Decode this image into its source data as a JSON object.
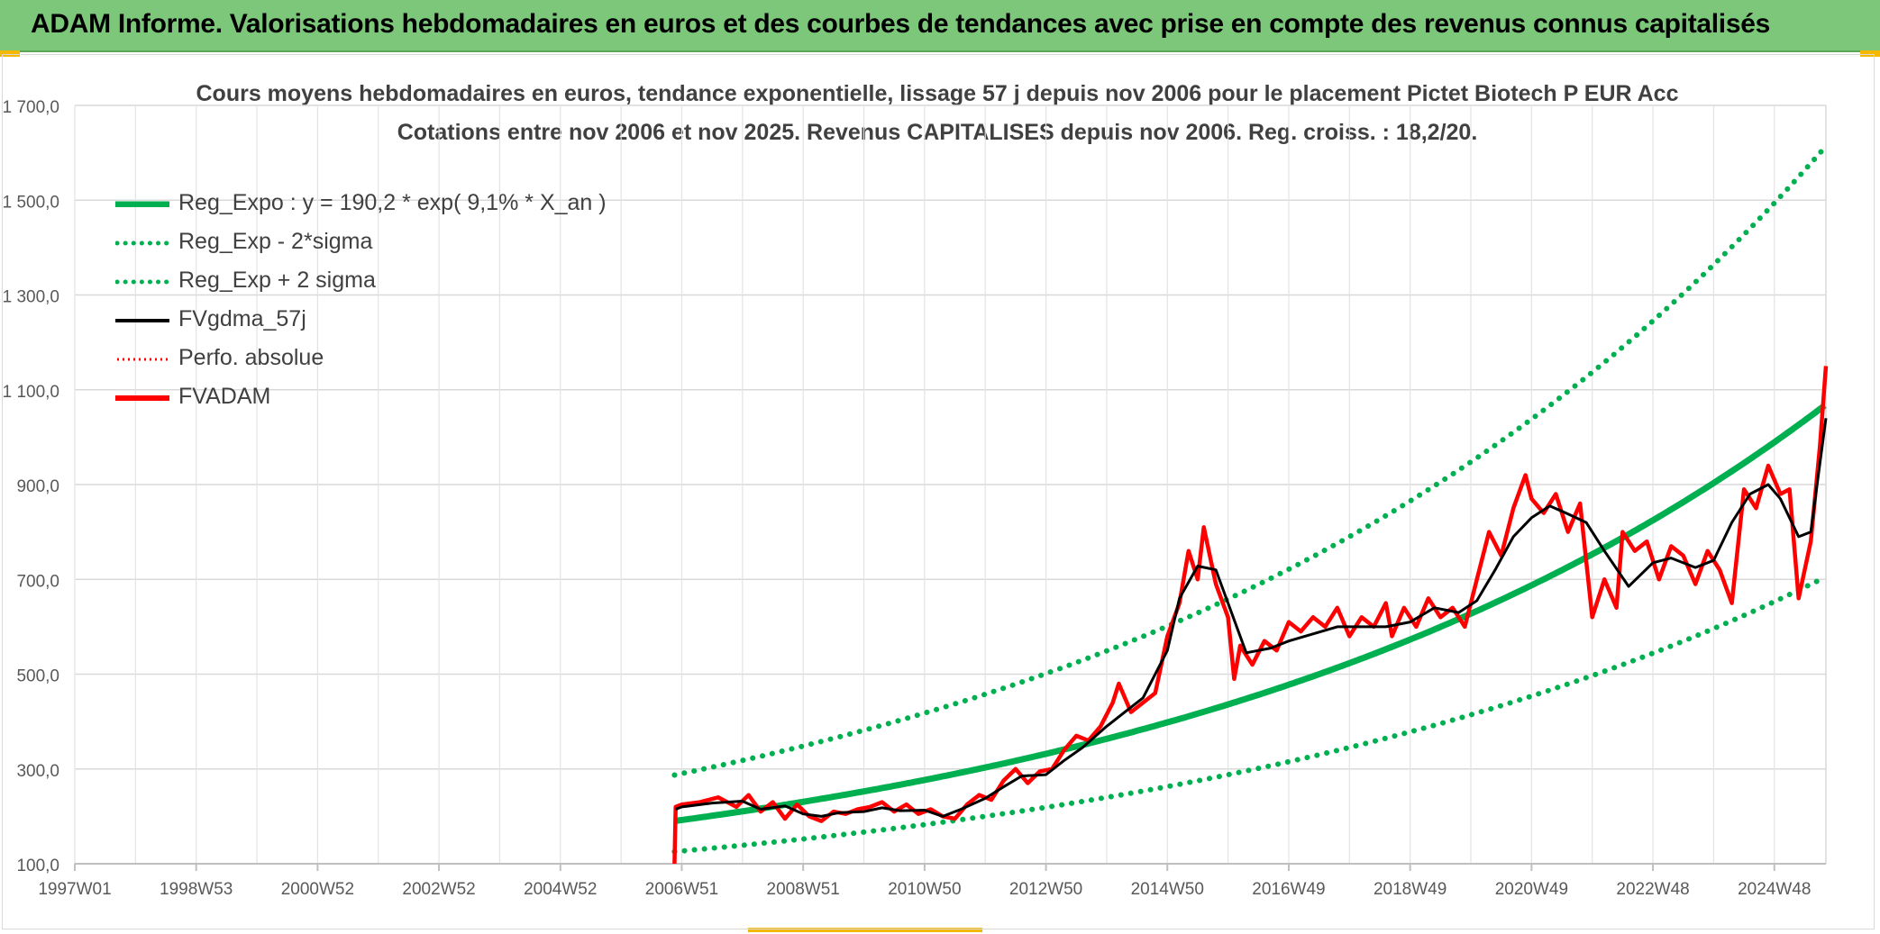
{
  "banner": {
    "title": "ADAM Informe. Valorisations hebdomadaires en euros et des courbes de tendances avec prise en compte des revenus connus capitalisés"
  },
  "chart_data": {
    "type": "line",
    "title": "Cours moyens hebdomadaires en euros, tendance exponentielle, lissage 57 j depuis nov 2006 pour le placement Pictet Biotech P EUR Acc",
    "subtitle": "Cotations entre nov 2006 et nov 2025. Revenus CAPITALISES depuis nov 2006. Reg. croiss. : 18,2/20.",
    "xlabel": "",
    "ylabel": "",
    "ylim": [
      100,
      1700
    ],
    "xlim": [
      1997.0,
      2025.85
    ],
    "y_ticks": [
      "1 700,0",
      "1 500,0",
      "1 300,0",
      "1 100,0",
      "900,0",
      "700,0",
      "500,0",
      "300,0",
      "100,0"
    ],
    "y_tick_values": [
      1700,
      1500,
      1300,
      1100,
      900,
      700,
      500,
      300,
      100
    ],
    "x_tick_labels": [
      "1997W01",
      "1998W53",
      "2000W52",
      "2002W52",
      "2004W52",
      "2006W51",
      "2008W51",
      "2010W50",
      "2012W50",
      "2014W50",
      "2016W49",
      "2018W49",
      "2020W49",
      "2022W48",
      "2024W48"
    ],
    "x_tick_values": [
      1997.0,
      1999.0,
      2001.0,
      2003.0,
      2005.0,
      2007.0,
      2009.0,
      2011.0,
      2013.0,
      2015.0,
      2017.0,
      2019.0,
      2021.0,
      2023.0,
      2025.0
    ],
    "grid": true,
    "legend_position": "top-left",
    "regression": {
      "start_year": 2006.88,
      "start_value": 190.2,
      "growth_rate": 0.091,
      "sigma_band_lower_factor": 0.66,
      "sigma_band_upper_factor": 1.51
    },
    "series": [
      {
        "name": "Reg_Expo : y = 190,2 * exp( 9,1% *  X_an )",
        "color": "#00b050",
        "style": "solid-thick"
      },
      {
        "name": "Reg_Exp - 2*sigma",
        "color": "#00b050",
        "style": "dotted"
      },
      {
        "name": "Reg_Exp + 2 sigma",
        "color": "#00b050",
        "style": "dotted"
      },
      {
        "name": "FVgdma_57j",
        "color": "#000000",
        "style": "solid",
        "x": [
          2006.9,
          2007.0,
          2007.5,
          2008.0,
          2008.3,
          2008.7,
          2009.0,
          2009.3,
          2009.6,
          2010.0,
          2010.3,
          2010.6,
          2011.0,
          2011.3,
          2011.6,
          2012.0,
          2012.3,
          2012.6,
          2013.0,
          2013.3,
          2013.6,
          2014.0,
          2014.3,
          2014.6,
          2015.0,
          2015.2,
          2015.5,
          2015.8,
          2016.0,
          2016.3,
          2016.7,
          2017.0,
          2017.4,
          2017.8,
          2018.2,
          2018.6,
          2019.0,
          2019.4,
          2019.8,
          2020.1,
          2020.4,
          2020.7,
          2021.0,
          2021.3,
          2021.6,
          2021.9,
          2022.2,
          2022.6,
          2023.0,
          2023.3,
          2023.7,
          2024.0,
          2024.3,
          2024.6,
          2024.9,
          2025.1,
          2025.4,
          2025.6,
          2025.85
        ],
        "y": [
          215,
          220,
          228,
          232,
          215,
          222,
          205,
          200,
          208,
          210,
          218,
          212,
          213,
          200,
          215,
          238,
          262,
          285,
          288,
          318,
          345,
          390,
          420,
          450,
          550,
          660,
          728,
          720,
          650,
          545,
          555,
          570,
          585,
          600,
          600,
          600,
          610,
          640,
          630,
          655,
          720,
          790,
          830,
          855,
          838,
          820,
          760,
          685,
          735,
          745,
          725,
          740,
          820,
          880,
          900,
          870,
          790,
          800,
          1040
        ]
      },
      {
        "name": "Perfo. absolue",
        "color": "#ff0000",
        "style": "dotted"
      },
      {
        "name": "FVADAM",
        "color": "#ff0000",
        "style": "solid-thick",
        "x": [
          2006.88,
          2006.9,
          2007.0,
          2007.3,
          2007.6,
          2007.9,
          2008.1,
          2008.3,
          2008.5,
          2008.7,
          2008.9,
          2009.1,
          2009.3,
          2009.5,
          2009.7,
          2009.9,
          2010.1,
          2010.3,
          2010.5,
          2010.7,
          2010.9,
          2011.1,
          2011.3,
          2011.5,
          2011.7,
          2011.9,
          2012.1,
          2012.3,
          2012.5,
          2012.7,
          2012.9,
          2013.1,
          2013.3,
          2013.5,
          2013.7,
          2013.9,
          2014.1,
          2014.2,
          2014.4,
          2014.6,
          2014.8,
          2015.0,
          2015.2,
          2015.35,
          2015.5,
          2015.6,
          2015.8,
          2016.0,
          2016.1,
          2016.2,
          2016.4,
          2016.6,
          2016.8,
          2017.0,
          2017.2,
          2017.4,
          2017.6,
          2017.8,
          2018.0,
          2018.2,
          2018.4,
          2018.6,
          2018.7,
          2018.9,
          2019.1,
          2019.3,
          2019.5,
          2019.7,
          2019.9,
          2020.1,
          2020.3,
          2020.5,
          2020.7,
          2020.9,
          2021.0,
          2021.2,
          2021.4,
          2021.6,
          2021.8,
          2022.0,
          2022.2,
          2022.4,
          2022.5,
          2022.7,
          2022.9,
          2023.1,
          2023.3,
          2023.5,
          2023.7,
          2023.9,
          2024.1,
          2024.3,
          2024.5,
          2024.7,
          2024.9,
          2025.1,
          2025.25,
          2025.4,
          2025.6,
          2025.75,
          2025.85
        ],
        "y": [
          100,
          220,
          225,
          230,
          240,
          220,
          245,
          210,
          230,
          195,
          225,
          200,
          190,
          210,
          205,
          215,
          220,
          230,
          210,
          225,
          205,
          215,
          200,
          195,
          225,
          245,
          235,
          275,
          300,
          270,
          295,
          300,
          340,
          370,
          360,
          390,
          440,
          480,
          420,
          440,
          460,
          580,
          650,
          760,
          700,
          810,
          690,
          620,
          490,
          560,
          520,
          570,
          550,
          610,
          590,
          620,
          600,
          640,
          580,
          620,
          600,
          650,
          580,
          640,
          600,
          660,
          620,
          640,
          600,
          700,
          800,
          750,
          850,
          920,
          870,
          840,
          880,
          800,
          860,
          620,
          700,
          640,
          800,
          760,
          780,
          700,
          770,
          750,
          690,
          760,
          720,
          650,
          890,
          850,
          940,
          880,
          890,
          660,
          780,
          980,
          1150
        ]
      }
    ]
  }
}
